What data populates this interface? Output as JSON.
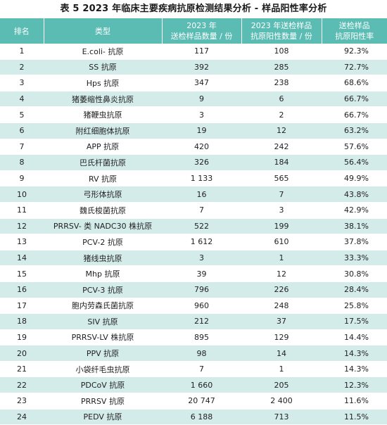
{
  "caption": "表 5  2023 年临床主要疾病抗原检测结果分析 - 样品阳性率分析",
  "headers": {
    "rank": "排名",
    "type": "类型",
    "samples_l1": "2023 年",
    "samples_l2": "送检样品数量 / 份",
    "positive_l1": "2023 年送检样品",
    "positive_l2": "抗原阳性数量 / 份",
    "rate_l1": "送检样品",
    "rate_l2": "抗原阳性率"
  },
  "rows": [
    {
      "rank": "1",
      "type": "E.coli- 抗原",
      "samples": "117",
      "positive": "108",
      "rate": "92.3%"
    },
    {
      "rank": "2",
      "type": "SS 抗原",
      "samples": "392",
      "positive": "285",
      "rate": "72.7%"
    },
    {
      "rank": "3",
      "type": "Hps 抗原",
      "samples": "347",
      "positive": "238",
      "rate": "68.6%"
    },
    {
      "rank": "4",
      "type": "猪萎缩性鼻炎抗原",
      "samples": "9",
      "positive": "6",
      "rate": "66.7%"
    },
    {
      "rank": "5",
      "type": "猪鞭虫抗原",
      "samples": "3",
      "positive": "2",
      "rate": "66.7%"
    },
    {
      "rank": "6",
      "type": "附红细胞体抗原",
      "samples": "19",
      "positive": "12",
      "rate": "63.2%"
    },
    {
      "rank": "7",
      "type": "APP 抗原",
      "samples": "420",
      "positive": "242",
      "rate": "57.6%"
    },
    {
      "rank": "8",
      "type": "巴氏杆菌抗原",
      "samples": "326",
      "positive": "184",
      "rate": "56.4%"
    },
    {
      "rank": "9",
      "type": "RV 抗原",
      "samples": "1 133",
      "positive": "565",
      "rate": "49.9%"
    },
    {
      "rank": "10",
      "type": "弓形体抗原",
      "samples": "16",
      "positive": "7",
      "rate": "43.8%"
    },
    {
      "rank": "11",
      "type": "魏氏梭菌抗原",
      "samples": "7",
      "positive": "3",
      "rate": "42.9%"
    },
    {
      "rank": "12",
      "type": "PRRSV- 类 NADC30 株抗原",
      "samples": "522",
      "positive": "199",
      "rate": "38.1%"
    },
    {
      "rank": "13",
      "type": "PCV-2 抗原",
      "samples": "1 612",
      "positive": "610",
      "rate": "37.8%"
    },
    {
      "rank": "14",
      "type": "猪线虫抗原",
      "samples": "3",
      "positive": "1",
      "rate": "33.3%"
    },
    {
      "rank": "15",
      "type": "Mhp 抗原",
      "samples": "39",
      "positive": "12",
      "rate": "30.8%"
    },
    {
      "rank": "16",
      "type": "PCV-3 抗原",
      "samples": "796",
      "positive": "226",
      "rate": "28.4%"
    },
    {
      "rank": "17",
      "type": "胞内劳森氏菌抗原",
      "samples": "960",
      "positive": "248",
      "rate": "25.8%"
    },
    {
      "rank": "18",
      "type": "SIV 抗原",
      "samples": "212",
      "positive": "37",
      "rate": "17.5%"
    },
    {
      "rank": "19",
      "type": "PRRSV-LV 株抗原",
      "samples": "895",
      "positive": "129",
      "rate": "14.4%"
    },
    {
      "rank": "20",
      "type": "PPV 抗原",
      "samples": "98",
      "positive": "14",
      "rate": "14.3%"
    },
    {
      "rank": "21",
      "type": "小袋纤毛虫抗原",
      "samples": "7",
      "positive": "1",
      "rate": "14.3%"
    },
    {
      "rank": "22",
      "type": "PDCoV 抗原",
      "samples": "1 660",
      "positive": "205",
      "rate": "12.3%"
    },
    {
      "rank": "23",
      "type": "PRRSV 抗原",
      "samples": "20 747",
      "positive": "2 400",
      "rate": "11.6%"
    },
    {
      "rank": "24",
      "type": "PEDV 抗原",
      "samples": "6 188",
      "positive": "713",
      "rate": "11.5%"
    }
  ]
}
